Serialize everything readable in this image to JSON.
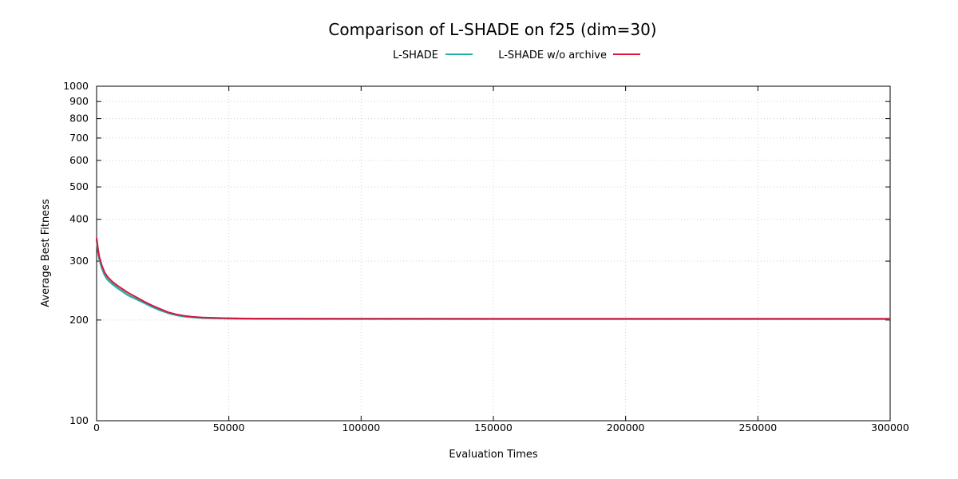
{
  "chart_data": {
    "type": "line",
    "title": "Comparison of L-SHADE on f25 (dim=30)",
    "xlabel": "Evaluation Times",
    "ylabel": "Average Best Fitness",
    "xlim": [
      0,
      300000
    ],
    "ylim": [
      100,
      1000
    ],
    "yscale": "log",
    "grid": true,
    "legend_position": "top-center",
    "x_ticks": [
      0,
      50000,
      100000,
      150000,
      200000,
      250000,
      300000
    ],
    "x_tick_labels": [
      "0",
      "50000",
      "100000",
      "150000",
      "200000",
      "250000",
      "300000"
    ],
    "y_ticks": [
      100,
      200,
      300,
      400,
      500,
      600,
      700,
      800,
      900,
      1000
    ],
    "y_tick_labels": [
      "100",
      "200",
      "300",
      "400",
      "500",
      "600",
      "700",
      "800",
      "900",
      "1000"
    ],
    "series": [
      {
        "name": "L-SHADE",
        "color": "#20b2aa",
        "x": [
          0,
          500,
          1000,
          2000,
          3000,
          4000,
          5000,
          6000,
          8000,
          10000,
          12000,
          15000,
          18000,
          21000,
          24000,
          27000,
          30000,
          33000,
          36000,
          40000,
          45000,
          50000,
          55000,
          60000,
          70000,
          80000,
          100000,
          150000,
          200000,
          250000,
          300000
        ],
        "y": [
          348,
          322,
          305,
          286,
          273,
          265,
          260,
          256,
          249,
          243,
          237,
          231,
          225,
          219,
          214,
          210,
          207,
          205,
          204,
          203,
          202.5,
          202.2,
          202,
          201.8,
          201.7,
          201.6,
          201.6,
          201.5,
          201.5,
          201.5,
          201.5
        ]
      },
      {
        "name": "L-SHADE w/o archive",
        "color": "#dc143c",
        "x": [
          0,
          500,
          1000,
          2000,
          3000,
          4000,
          5000,
          6000,
          8000,
          10000,
          12000,
          15000,
          18000,
          21000,
          24000,
          27000,
          30000,
          33000,
          36000,
          40000,
          45000,
          50000,
          55000,
          60000,
          70000,
          80000,
          100000,
          150000,
          200000,
          250000,
          300000
        ],
        "y": [
          352,
          327,
          310,
          291,
          278,
          270,
          265,
          260,
          253,
          247,
          241,
          234,
          227,
          221,
          216,
          211,
          208,
          206,
          204.5,
          203.5,
          202.8,
          202.4,
          202.1,
          201.9,
          201.8,
          201.7,
          201.6,
          201.6,
          201.6,
          201.6,
          201.6
        ]
      }
    ]
  }
}
